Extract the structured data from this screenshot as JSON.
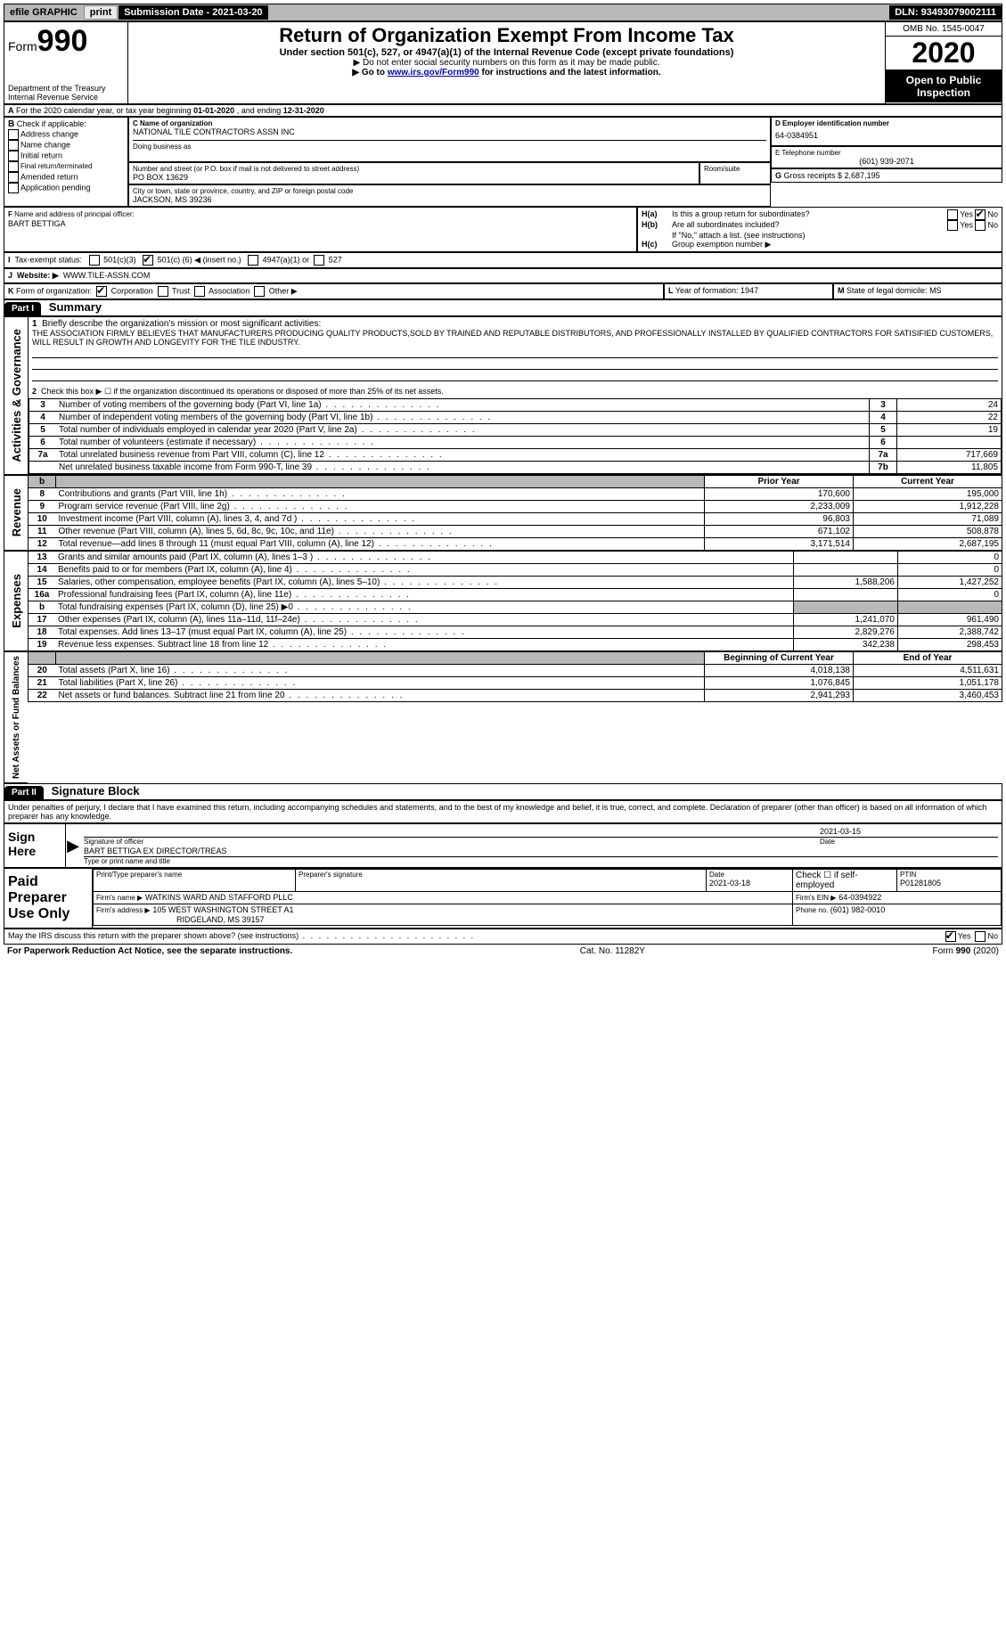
{
  "topbar": {
    "efile": "efile GRAPHIC",
    "print": "print",
    "sub_label": "Submission Date - ",
    "sub_date": "2021-03-20",
    "dln_label": "DLN: ",
    "dln": "93493079002111"
  },
  "header": {
    "form_word": "Form",
    "form_num": "990",
    "dept1": "Department of the Treasury",
    "dept2": "Internal Revenue Service",
    "title": "Return of Organization Exempt From Income Tax",
    "sub1": "Under section 501(c), 527, or 4947(a)(1) of the Internal Revenue Code (except private foundations)",
    "sub2": "▶ Do not enter social security numbers on this form as it may be made public.",
    "sub3a": "▶ Go to ",
    "sub3_link": "www.irs.gov/Form990",
    "sub3b": " for instructions and the latest information.",
    "omb": "OMB No. 1545-0047",
    "year": "2020",
    "open": "Open to Public Inspection"
  },
  "periodA": {
    "prefix": "A",
    "text1": "For the 2020 calendar year, or tax year beginning ",
    "begin": "01-01-2020",
    "text2": " , and ending ",
    "end": "12-31-2020"
  },
  "boxB": {
    "label": "B",
    "hint": " Check if applicable:",
    "opts": [
      "Address change",
      "Name change",
      "Initial return",
      "Final return/terminated",
      "Amended return",
      "Application pending"
    ]
  },
  "boxC": {
    "label_name": "C Name of organization",
    "org_name": "NATIONAL TILE CONTRACTORS ASSN INC",
    "dba_label": "Doing business as",
    "addr_label": "Number and street (or P.O. box if mail is not delivered to street address)",
    "room_label": "Room/suite",
    "addr": "PO BOX 13629",
    "city_label": "City or town, state or province, country, and ZIP or foreign postal code",
    "city": "JACKSON, MS  39236"
  },
  "boxD": {
    "label": "D Employer identification number",
    "val": "64-0384951"
  },
  "boxE": {
    "label": "E Telephone number",
    "val": "(601) 939-2071"
  },
  "boxG": {
    "label": "G",
    "text": " Gross receipts $ ",
    "val": "2,687,195"
  },
  "boxF": {
    "label": "F",
    "text": " Name and address of principal officer:",
    "name": "BART BETTIGA"
  },
  "boxH": {
    "a_label": "H(a)",
    "a_text": "Is this a group return for subordinates?",
    "b_label": "H(b)",
    "b_text": "Are all subordinates included?",
    "b_note": "If \"No,\" attach a list. (see instructions)",
    "c_label": "H(c)",
    "c_text": "Group exemption number ▶",
    "yes": "Yes",
    "no": "No"
  },
  "boxI": {
    "label": "I",
    "text": "Tax-exempt status:",
    "o1": "501(c)(3)",
    "o2a": "501(c) (",
    "o2v": "6",
    "o2b": ") ◀ (insert no.)",
    "o3": "4947(a)(1) or",
    "o4": "527"
  },
  "boxJ": {
    "label": "J",
    "text": "Website: ▶",
    "val": "WWW.TILE-ASSN.COM"
  },
  "boxK": {
    "label": "K",
    "text": " Form of organization:",
    "o1": "Corporation",
    "o2": "Trust",
    "o3": "Association",
    "o4": "Other ▶"
  },
  "boxL": {
    "label": "L",
    "text": " Year of formation: ",
    "val": "1947"
  },
  "boxM": {
    "label": "M",
    "text": " State of legal domicile: ",
    "val": "MS"
  },
  "part1": {
    "tab": "Part I",
    "title": "Summary",
    "side_ag": "Activities & Governance",
    "side_rev": "Revenue",
    "side_exp": "Expenses",
    "side_na": "Net Assets or Fund Balances",
    "l1_label": "1",
    "l1_text": "Briefly describe the organization's mission or most significant activities:",
    "l1_body": "THE ASSOCIATION FIRMLY BELIEVES THAT MANUFACTURERS PRODUCING QUALITY PRODUCTS,SOLD BY TRAINED AND REPUTABLE DISTRIBUTORS, AND PROFESSIONALLY INSTALLED BY QUALIFIED CONTRACTORS FOR SATISIFIED CUSTOMERS, WILL RESULT IN GROWTH AND LONGEVITY FOR THE TILE INDUSTRY.",
    "l2_label": "2",
    "l2_text": "Check this box ▶ ☐  if the organization discontinued its operations or disposed of more than 25% of its net assets.",
    "rows_ag": [
      {
        "n": "3",
        "t": "Number of voting members of the governing body (Part VI, line 1a)",
        "box": "3",
        "v": "24"
      },
      {
        "n": "4",
        "t": "Number of independent voting members of the governing body (Part VI, line 1b)",
        "box": "4",
        "v": "22"
      },
      {
        "n": "5",
        "t": "Total number of individuals employed in calendar year 2020 (Part V, line 2a)",
        "box": "5",
        "v": "19"
      },
      {
        "n": "6",
        "t": "Total number of volunteers (estimate if necessary)",
        "box": "6",
        "v": ""
      },
      {
        "n": "7a",
        "t": "Total unrelated business revenue from Part VIII, column (C), line 12",
        "box": "7a",
        "v": "717,669"
      },
      {
        "n": "",
        "t": "Net unrelated business taxable income from Form 990-T, line 39",
        "box": "7b",
        "v": "11,805"
      }
    ],
    "hdr_b": "b",
    "hdr_prior": "Prior Year",
    "hdr_curr": "Current Year",
    "rows_rev": [
      {
        "n": "8",
        "t": "Contributions and grants (Part VIII, line 1h)",
        "p": "170,600",
        "c": "195,000"
      },
      {
        "n": "9",
        "t": "Program service revenue (Part VIII, line 2g)",
        "p": "2,233,009",
        "c": "1,912,228"
      },
      {
        "n": "10",
        "t": "Investment income (Part VIII, column (A), lines 3, 4, and 7d )",
        "p": "96,803",
        "c": "71,089"
      },
      {
        "n": "11",
        "t": "Other revenue (Part VIII, column (A), lines 5, 6d, 8c, 9c, 10c, and 11e)",
        "p": "671,102",
        "c": "508,878"
      },
      {
        "n": "12",
        "t": "Total revenue—add lines 8 through 11 (must equal Part VIII, column (A), line 12)",
        "p": "3,171,514",
        "c": "2,687,195"
      }
    ],
    "rows_exp": [
      {
        "n": "13",
        "t": "Grants and similar amounts paid (Part IX, column (A), lines 1–3 )",
        "p": "",
        "c": "0"
      },
      {
        "n": "14",
        "t": "Benefits paid to or for members (Part IX, column (A), line 4)",
        "p": "",
        "c": "0"
      },
      {
        "n": "15",
        "t": "Salaries, other compensation, employee benefits (Part IX, column (A), lines 5–10)",
        "p": "1,588,206",
        "c": "1,427,252"
      },
      {
        "n": "16a",
        "t": "Professional fundraising fees (Part IX, column (A), line 11e)",
        "p": "",
        "c": "0"
      },
      {
        "n": "b",
        "t": "Total fundraising expenses (Part IX, column (D), line 25) ▶0",
        "p": "shade",
        "c": "shade"
      },
      {
        "n": "17",
        "t": "Other expenses (Part IX, column (A), lines 11a–11d, 11f–24e)",
        "p": "1,241,070",
        "c": "961,490"
      },
      {
        "n": "18",
        "t": "Total expenses. Add lines 13–17 (must equal Part IX, column (A), line 25)",
        "p": "2,829,276",
        "c": "2,388,742"
      },
      {
        "n": "19",
        "t": "Revenue less expenses. Subtract line 18 from line 12",
        "p": "342,238",
        "c": "298,453"
      }
    ],
    "hdr_boy": "Beginning of Current Year",
    "hdr_eoy": "End of Year",
    "rows_na": [
      {
        "n": "20",
        "t": "Total assets (Part X, line 16)",
        "p": "4,018,138",
        "c": "4,511,631"
      },
      {
        "n": "21",
        "t": "Total liabilities (Part X, line 26)",
        "p": "1,076,845",
        "c": "1,051,178"
      },
      {
        "n": "22",
        "t": "Net assets or fund balances. Subtract line 21 from line 20",
        "p": "2,941,293",
        "c": "3,460,453"
      }
    ]
  },
  "part2": {
    "tab": "Part II",
    "title": "Signature Block",
    "decl": "Under penalties of perjury, I declare that I have examined this return, including accompanying schedules and statements, and to the best of my knowledge and belief, it is true, correct, and complete. Declaration of preparer (other than officer) is based on all information of which preparer has any knowledge.",
    "sign_here": "Sign Here",
    "sig_officer": "Signature of officer",
    "sig_date_lbl": "Date",
    "sig_date": "2021-03-15",
    "name_title": "BART BETTIGA  EX DIRECTOR/TREAS",
    "name_hint": "Type or print name and title",
    "ppu": "Paid Preparer Use Only",
    "pp_name_lbl": "Print/Type preparer's name",
    "pp_sig_lbl": "Preparer's signature",
    "pp_date_lbl": "Date",
    "pp_date": "2021-03-18",
    "pp_self_lbl": "Check ☐ if self-employed",
    "ptin_lbl": "PTIN",
    "ptin": "P01281805",
    "firm_name_lbl": "Firm's name   ▶",
    "firm_name": "WATKINS WARD AND STAFFORD PLLC",
    "firm_ein_lbl": "Firm's EIN ▶",
    "firm_ein": "64-0394922",
    "firm_addr_lbl": "Firm's address ▶",
    "firm_addr1": "105 WEST WASHINGTON STREET A1",
    "firm_addr2": "RIDGELAND, MS  39157",
    "phone_lbl": "Phone no. ",
    "phone": "(601) 982-0010",
    "discuss": "May the IRS discuss this return with the preparer shown above? (see instructions)",
    "yes": "Yes",
    "no": "No"
  },
  "footer": {
    "left": "For Paperwork Reduction Act Notice, see the separate instructions.",
    "mid": "Cat. No. 11282Y",
    "right": "Form 990 (2020)"
  }
}
